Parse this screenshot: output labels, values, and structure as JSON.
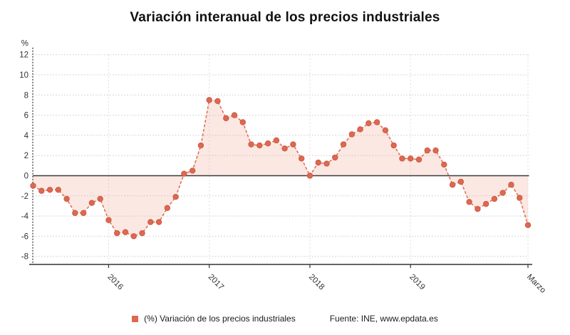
{
  "title": "Variación interanual de los precios industriales",
  "y_axis": {
    "unit_label": "%"
  },
  "legend": {
    "series_label": "(%) Variación de los precios industriales",
    "source_label": "Fuente: INE, www.epdata.es"
  },
  "colors": {
    "line": "#e0735c",
    "marker": "#df6850",
    "marker_edge": "#ca5a44",
    "fill": "#f0a58e",
    "grid": "#c9c9c9",
    "vgrid": "#dcdcdc",
    "axis": "#333333",
    "zero_line": "#3b3b3b",
    "text": "#333333"
  },
  "chart_data": {
    "type": "line",
    "title": "Variación interanual de los precios industriales",
    "ylabel": "%",
    "ylim": [
      -8,
      12
    ],
    "y_ticks": [
      12,
      10,
      8,
      6,
      4,
      2,
      0,
      -2,
      -4,
      -6,
      -8
    ],
    "x_tick_labels": [
      "2016",
      "2017",
      "2018",
      "2019",
      "Marzo"
    ],
    "x_tick_indices": [
      9,
      21,
      33,
      45,
      59
    ],
    "grid": true,
    "legend_position": "bottom",
    "line_style": "dashed",
    "markers": true,
    "fill_to_zero": true,
    "series": [
      {
        "name": "(%) Variación de los precios industriales",
        "values": [
          -1.0,
          -1.5,
          -1.4,
          -1.4,
          -2.3,
          -3.7,
          -3.7,
          -2.7,
          -2.3,
          -4.4,
          -5.7,
          -5.6,
          -6.0,
          -5.7,
          -4.6,
          -4.6,
          -3.2,
          -2.1,
          0.2,
          0.5,
          3.0,
          7.5,
          7.4,
          5.7,
          6.0,
          5.3,
          3.1,
          3.0,
          3.2,
          3.5,
          2.7,
          3.1,
          1.7,
          0.0,
          1.3,
          1.2,
          1.8,
          3.1,
          4.1,
          4.6,
          5.2,
          5.3,
          4.5,
          3.0,
          1.7,
          1.7,
          1.6,
          2.5,
          2.5,
          1.1,
          -0.9,
          -0.6,
          -2.6,
          -3.3,
          -2.8,
          -2.3,
          -1.7,
          -0.9,
          -2.2,
          -4.9
        ]
      }
    ]
  }
}
